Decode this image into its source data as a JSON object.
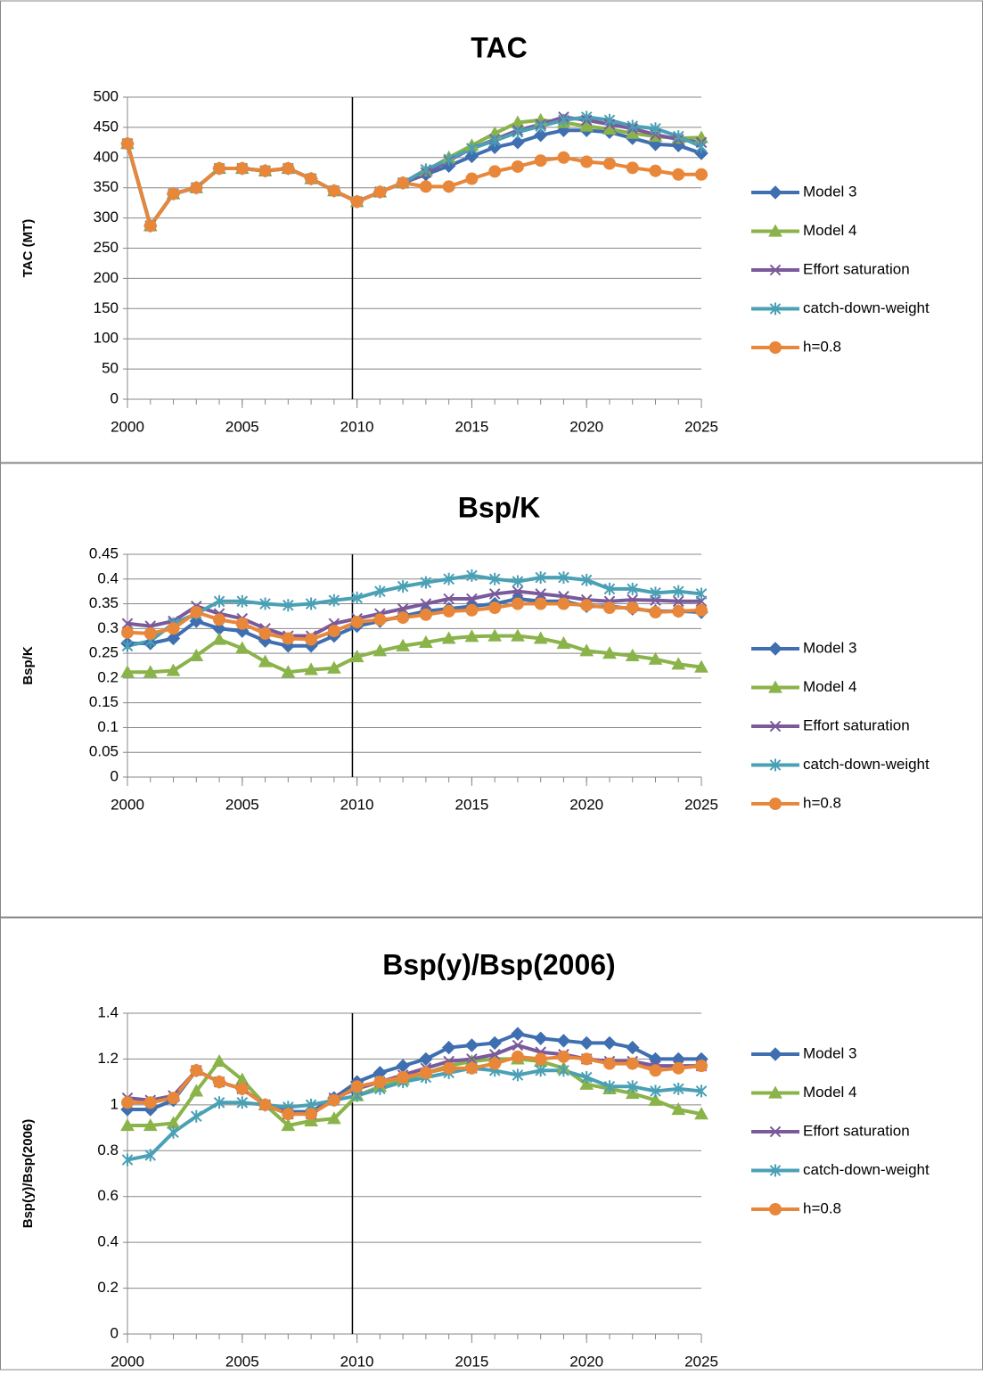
{
  "chart_data": [
    {
      "type": "line",
      "title": "TAC",
      "y_label": "TAC (MT)",
      "x": [
        2000,
        2001,
        2002,
        2003,
        2004,
        2005,
        2006,
        2007,
        2008,
        2009,
        2010,
        2011,
        2012,
        2013,
        2014,
        2015,
        2016,
        2017,
        2018,
        2019,
        2020,
        2021,
        2022,
        2023,
        2024,
        2025
      ],
      "xlim": [
        2000,
        2025
      ],
      "xticks": [
        2000,
        2005,
        2010,
        2015,
        2020,
        2025
      ],
      "ylim": [
        0,
        500
      ],
      "yticks": [
        0,
        50,
        100,
        150,
        200,
        250,
        300,
        350,
        400,
        450,
        500
      ],
      "grid": true,
      "legend": "right",
      "vline": 2009.8,
      "series": [
        {
          "name": "Model 3",
          "color": "#3f6fb0",
          "marker": "diamond",
          "values": [
            423,
            287,
            340,
            350,
            382,
            382,
            378,
            382,
            365,
            345,
            327,
            343,
            358,
            372,
            386,
            402,
            417,
            425,
            437,
            445,
            445,
            442,
            432,
            422,
            420,
            407
          ]
        },
        {
          "name": "Model 4",
          "color": "#8ab34a",
          "marker": "triangle",
          "values": [
            423,
            287,
            340,
            350,
            382,
            382,
            378,
            382,
            365,
            345,
            327,
            343,
            358,
            378,
            400,
            420,
            440,
            458,
            462,
            458,
            452,
            447,
            440,
            435,
            432,
            433
          ]
        },
        {
          "name": "Effort saturation",
          "color": "#7a5a9a",
          "marker": "x",
          "values": [
            423,
            287,
            340,
            350,
            382,
            382,
            378,
            382,
            365,
            345,
            327,
            343,
            358,
            375,
            395,
            415,
            430,
            445,
            455,
            467,
            462,
            455,
            448,
            438,
            430,
            425
          ]
        },
        {
          "name": "catch-down-weight",
          "color": "#4aa0b5",
          "marker": "star",
          "values": [
            423,
            287,
            340,
            350,
            382,
            382,
            378,
            382,
            365,
            345,
            327,
            343,
            358,
            380,
            397,
            415,
            428,
            442,
            452,
            462,
            467,
            462,
            452,
            448,
            435,
            418
          ]
        },
        {
          "name": "h=0.8",
          "color": "#e8873a",
          "marker": "circle",
          "values": [
            423,
            287,
            340,
            350,
            382,
            382,
            378,
            382,
            365,
            345,
            327,
            343,
            358,
            352,
            352,
            365,
            377,
            385,
            395,
            400,
            393,
            390,
            383,
            378,
            372,
            372
          ]
        }
      ]
    },
    {
      "type": "line",
      "title": "Bsp/K",
      "y_label": "Bsp/K",
      "x": [
        2000,
        2001,
        2002,
        2003,
        2004,
        2005,
        2006,
        2007,
        2008,
        2009,
        2010,
        2011,
        2012,
        2013,
        2014,
        2015,
        2016,
        2017,
        2018,
        2019,
        2020,
        2021,
        2022,
        2023,
        2024,
        2025
      ],
      "xlim": [
        2000,
        2025
      ],
      "xticks": [
        2000,
        2005,
        2010,
        2015,
        2020,
        2025
      ],
      "ylim": [
        0,
        0.45
      ],
      "yticks": [
        0,
        0.05,
        0.1,
        0.15,
        0.2,
        0.25,
        0.3,
        0.35,
        0.4,
        0.45
      ],
      "grid": true,
      "legend": "right",
      "vline": 2009.8,
      "series": [
        {
          "name": "Model 3",
          "color": "#3f6fb0",
          "marker": "diamond",
          "values": [
            0.27,
            0.27,
            0.28,
            0.315,
            0.3,
            0.295,
            0.275,
            0.265,
            0.265,
            0.285,
            0.305,
            0.315,
            0.325,
            0.335,
            0.34,
            0.345,
            0.35,
            0.36,
            0.355,
            0.355,
            0.345,
            0.345,
            0.34,
            0.335,
            0.335,
            0.333
          ]
        },
        {
          "name": "Model 4",
          "color": "#8ab34a",
          "marker": "triangle",
          "values": [
            0.212,
            0.212,
            0.215,
            0.245,
            0.278,
            0.26,
            0.233,
            0.212,
            0.217,
            0.22,
            0.243,
            0.255,
            0.265,
            0.272,
            0.28,
            0.284,
            0.285,
            0.285,
            0.28,
            0.27,
            0.255,
            0.25,
            0.245,
            0.238,
            0.228,
            0.222
          ]
        },
        {
          "name": "Effort saturation",
          "color": "#7a5a9a",
          "marker": "x",
          "values": [
            0.31,
            0.305,
            0.315,
            0.345,
            0.33,
            0.32,
            0.3,
            0.285,
            0.285,
            0.31,
            0.32,
            0.33,
            0.34,
            0.35,
            0.36,
            0.36,
            0.37,
            0.375,
            0.37,
            0.365,
            0.358,
            0.355,
            0.358,
            0.357,
            0.355,
            0.355
          ]
        },
        {
          "name": "catch-down-weight",
          "color": "#4aa0b5",
          "marker": "star",
          "values": [
            0.265,
            0.275,
            0.31,
            0.33,
            0.355,
            0.355,
            0.35,
            0.347,
            0.35,
            0.357,
            0.362,
            0.375,
            0.385,
            0.393,
            0.4,
            0.407,
            0.4,
            0.395,
            0.403,
            0.403,
            0.398,
            0.38,
            0.38,
            0.372,
            0.375,
            0.37
          ]
        },
        {
          "name": "h=0.8",
          "color": "#e8873a",
          "marker": "circle",
          "values": [
            0.292,
            0.29,
            0.3,
            0.333,
            0.318,
            0.31,
            0.29,
            0.28,
            0.278,
            0.295,
            0.313,
            0.318,
            0.322,
            0.328,
            0.335,
            0.337,
            0.342,
            0.35,
            0.35,
            0.35,
            0.347,
            0.342,
            0.342,
            0.333,
            0.335,
            0.337
          ]
        }
      ]
    },
    {
      "type": "line",
      "title": "Bsp(y)/Bsp(2006)",
      "y_label": "Bsp(y)/Bsp(2006)",
      "x": [
        2000,
        2001,
        2002,
        2003,
        2004,
        2005,
        2006,
        2007,
        2008,
        2009,
        2010,
        2011,
        2012,
        2013,
        2014,
        2015,
        2016,
        2017,
        2018,
        2019,
        2020,
        2021,
        2022,
        2023,
        2024,
        2025
      ],
      "xlim": [
        2000,
        2025
      ],
      "xticks": [
        2000,
        2005,
        2010,
        2015,
        2020,
        2025
      ],
      "ylim": [
        0,
        1.4
      ],
      "yticks": [
        0,
        0.2,
        0.4,
        0.6,
        0.8,
        1,
        1.2,
        1.4
      ],
      "grid": true,
      "legend": "right",
      "vline": 2009.8,
      "series": [
        {
          "name": "Model 3",
          "color": "#3f6fb0",
          "marker": "diamond",
          "values": [
            0.98,
            0.98,
            1.02,
            1.15,
            1.1,
            1.07,
            1.0,
            0.97,
            0.97,
            1.03,
            1.1,
            1.14,
            1.17,
            1.2,
            1.25,
            1.26,
            1.27,
            1.31,
            1.29,
            1.28,
            1.27,
            1.27,
            1.25,
            1.2,
            1.2,
            1.2
          ]
        },
        {
          "name": "Model 4",
          "color": "#8ab34a",
          "marker": "triangle",
          "values": [
            0.91,
            0.91,
            0.92,
            1.06,
            1.19,
            1.11,
            1.0,
            0.91,
            0.93,
            0.94,
            1.04,
            1.08,
            1.11,
            1.14,
            1.17,
            1.19,
            1.2,
            1.2,
            1.19,
            1.16,
            1.09,
            1.07,
            1.05,
            1.02,
            0.98,
            0.96
          ]
        },
        {
          "name": "Effort saturation",
          "color": "#7a5a9a",
          "marker": "x",
          "values": [
            1.03,
            1.02,
            1.04,
            1.15,
            1.1,
            1.07,
            1.0,
            0.96,
            0.96,
            1.03,
            1.07,
            1.1,
            1.13,
            1.16,
            1.19,
            1.2,
            1.22,
            1.26,
            1.23,
            1.22,
            1.2,
            1.19,
            1.19,
            1.17,
            1.17,
            1.17
          ]
        },
        {
          "name": "catch-down-weight",
          "color": "#4aa0b5",
          "marker": "star",
          "values": [
            0.76,
            0.78,
            0.88,
            0.95,
            1.01,
            1.01,
            1.0,
            0.99,
            1.0,
            1.02,
            1.04,
            1.07,
            1.1,
            1.12,
            1.14,
            1.16,
            1.15,
            1.13,
            1.15,
            1.15,
            1.12,
            1.08,
            1.08,
            1.06,
            1.07,
            1.06
          ]
        },
        {
          "name": "h=0.8",
          "color": "#e8873a",
          "marker": "circle",
          "values": [
            1.01,
            1.01,
            1.03,
            1.15,
            1.1,
            1.07,
            1.0,
            0.96,
            0.96,
            1.02,
            1.08,
            1.1,
            1.12,
            1.14,
            1.16,
            1.16,
            1.18,
            1.21,
            1.2,
            1.21,
            1.2,
            1.18,
            1.18,
            1.15,
            1.16,
            1.17
          ]
        }
      ]
    }
  ]
}
